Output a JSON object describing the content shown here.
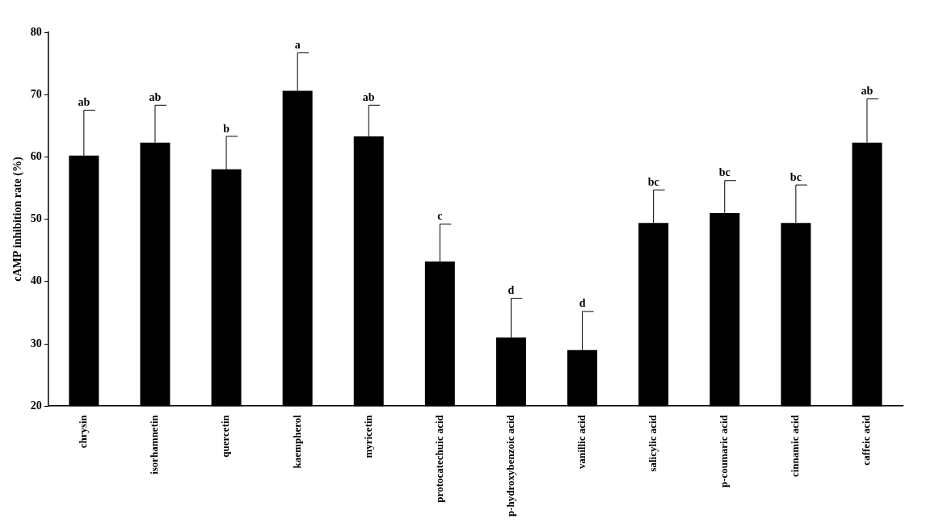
{
  "chart_data": {
    "type": "bar",
    "y_label": "cAMP inhibition rate (%)",
    "categories": [
      "chrysin",
      "isorhamnetin",
      "quercetin",
      "kaempherol",
      "myricetin",
      "protocatechuic acid",
      "p-hydroxybenzoic acid",
      "vanillic acid",
      "salicylic acid",
      "p-coumaric acid",
      "cinnamic acid",
      "caffeic acid"
    ],
    "values": [
      60.2,
      62.3,
      58.0,
      70.6,
      63.3,
      43.2,
      31.0,
      29.0,
      49.4,
      51.0,
      49.4,
      62.3
    ],
    "errors": [
      7.3,
      6.0,
      5.3,
      6.1,
      5.0,
      6.0,
      6.3,
      6.2,
      5.3,
      5.2,
      6.1,
      7.0
    ],
    "letters": [
      "ab",
      "ab",
      "b",
      "a",
      "ab",
      "c",
      "d",
      "d",
      "bc",
      "bc",
      "bc",
      "ab"
    ],
    "color": "#000000",
    "ylim": [
      20,
      80
    ],
    "yticks": [
      20,
      30,
      40,
      50,
      60,
      70,
      80
    ],
    "grid": false
  }
}
